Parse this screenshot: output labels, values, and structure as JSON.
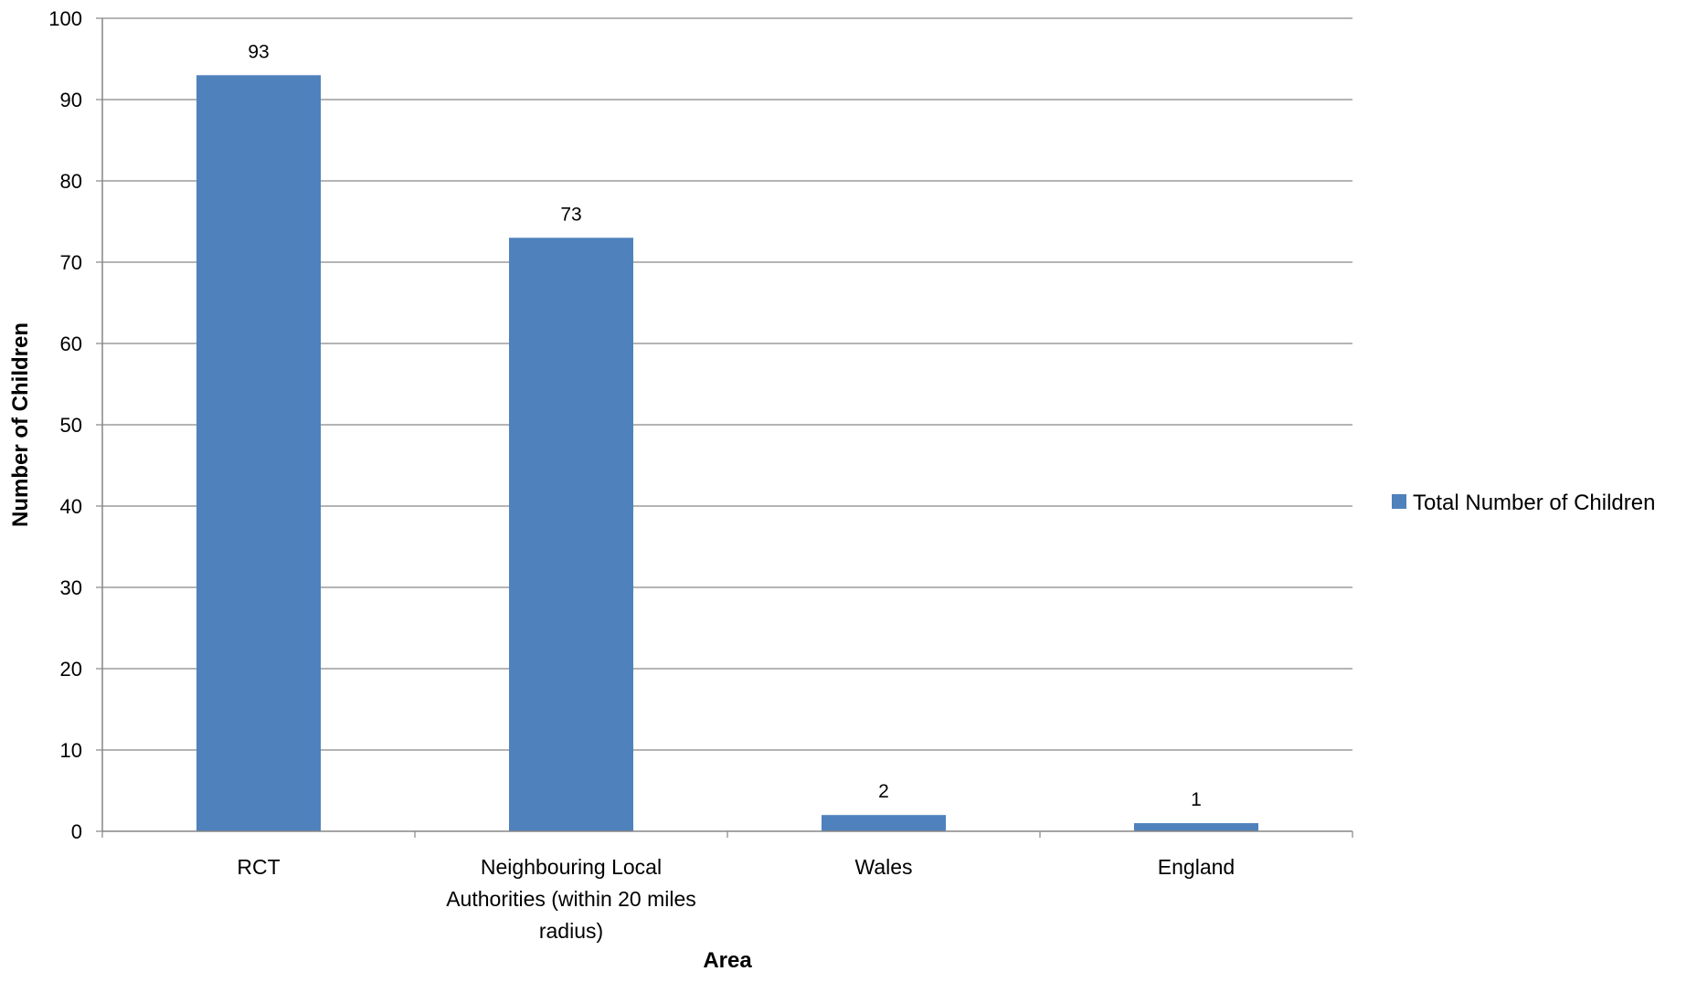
{
  "chart_data": {
    "type": "bar",
    "categories": [
      [
        "RCT"
      ],
      [
        "Neighbouring Local",
        "Authorities (within 20 miles",
        "radius)"
      ],
      [
        "Wales"
      ],
      [
        "England"
      ]
    ],
    "series": [
      {
        "name": "Total Number of Children",
        "values": [
          93,
          73,
          2,
          1
        ],
        "color": "#4F81BD"
      }
    ],
    "data_labels": [
      "93",
      "73",
      "2",
      "1"
    ],
    "xlabel": "Area",
    "ylabel": "Number of Children",
    "ylim": [
      0,
      100
    ],
    "yticks": [
      "0",
      "10",
      "20",
      "30",
      "40",
      "50",
      "60",
      "70",
      "80",
      "90",
      "100"
    ],
    "grid": true,
    "legend": "right",
    "gridline_color": "#868686"
  }
}
